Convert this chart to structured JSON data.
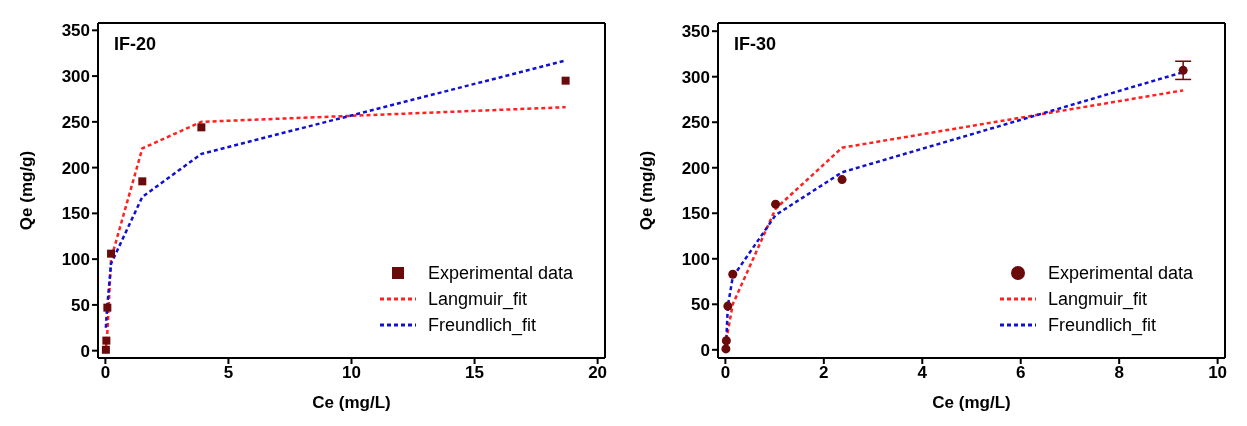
{
  "chart_data": [
    {
      "type": "scatter",
      "title": "IF-20",
      "xlabel": "Ce (mg/L)",
      "ylabel": "Qe (mg/g)",
      "xlim": [
        -0.3,
        20.3
      ],
      "ylim": [
        -8,
        358
      ],
      "xticks": [
        0,
        5,
        10,
        15,
        20
      ],
      "yticks": [
        0,
        50,
        100,
        150,
        200,
        250,
        300,
        350
      ],
      "grid": false,
      "legend": "bottom right",
      "series": [
        {
          "name": "Experimental data",
          "type": "scatter",
          "color": "#6b0a0a",
          "marker": "square",
          "x": [
            0.02,
            0.04,
            0.08,
            0.23,
            1.5,
            3.9,
            18.7
          ],
          "values": [
            1,
            11,
            47,
            106,
            185,
            244,
            295
          ]
        },
        {
          "name": "Langmuir_fit",
          "type": "line",
          "color": "#ff2020",
          "marker": "none",
          "line_style": "dashed",
          "x": [
            0.02,
            0.04,
            0.08,
            0.23,
            1.5,
            3.9,
            18.7
          ],
          "values": [
            3,
            8,
            20,
            100,
            221,
            250,
            266
          ]
        },
        {
          "name": "Freundlich_fit",
          "type": "line",
          "color": "#1010d0",
          "marker": "none",
          "line_style": "dashed",
          "x": [
            0.02,
            0.04,
            0.08,
            0.23,
            1.5,
            3.9,
            18.7
          ],
          "values": [
            25,
            35,
            50,
            95,
            168,
            215,
            317
          ]
        }
      ]
    },
    {
      "type": "scatter",
      "title": "IF-30",
      "xlabel": "Ce (mg/L)",
      "ylabel": "Qe (mg/g)",
      "xlim": [
        -0.15,
        10.15
      ],
      "ylim": [
        -9,
        359
      ],
      "xticks": [
        0,
        2,
        4,
        6,
        8,
        10
      ],
      "yticks": [
        0,
        50,
        100,
        150,
        200,
        250,
        300,
        350
      ],
      "grid": false,
      "legend": "bottom right",
      "series": [
        {
          "name": "Experimental data",
          "type": "scatter",
          "color": "#6b0a0a",
          "marker": "circle",
          "x": [
            0.01,
            0.02,
            0.05,
            0.15,
            1.02,
            2.37,
            9.3
          ],
          "values": [
            1,
            10,
            48,
            83,
            160,
            187,
            307
          ],
          "errors": [
            null,
            null,
            null,
            null,
            null,
            null,
            10
          ]
        },
        {
          "name": "Langmuir_fit",
          "type": "line",
          "color": "#ff2020",
          "marker": "none",
          "line_style": "dashed",
          "x": [
            0.01,
            0.02,
            0.05,
            0.15,
            1.02,
            2.37,
            9.3
          ],
          "values": [
            3,
            8,
            20,
            50,
            155,
            222,
            285
          ]
        },
        {
          "name": "Freundlich_fit",
          "type": "line",
          "color": "#1010d0",
          "marker": "none",
          "line_style": "dashed",
          "x": [
            0.02,
            0.05,
            0.15,
            1.02,
            2.37,
            9.3
          ],
          "values": [
            12,
            48,
            80,
            148,
            195,
            305
          ]
        }
      ]
    }
  ]
}
